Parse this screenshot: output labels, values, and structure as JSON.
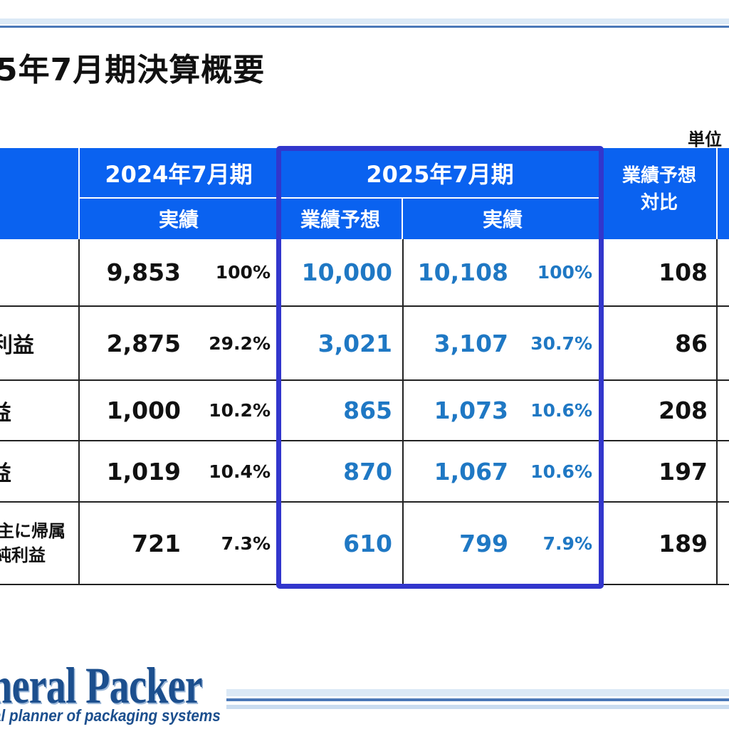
{
  "title": "5年7月期決算概要",
  "unit_label": "単位",
  "header": {
    "fy2024": "2024年7月期",
    "fy2024_actual": "実績",
    "fy2025": "2025年7月期",
    "fy2025_forecast": "業績予想",
    "fy2025_actual": "実績",
    "vs_forecast_line1": "業績予想",
    "vs_forecast_line2": "対比"
  },
  "rows": [
    {
      "label": "",
      "label2": "",
      "fy2024": "9,853",
      "fy2024_pct": "100%",
      "forecast": "10,000",
      "actual": "10,108",
      "actual_pct": "100%",
      "vs": "108"
    },
    {
      "label": "利益",
      "label2": "",
      "fy2024": "2,875",
      "fy2024_pct": "29.2%",
      "forecast": "3,021",
      "actual": "3,107",
      "actual_pct": "30.7%",
      "vs": "86"
    },
    {
      "label": "益",
      "label2": "",
      "fy2024": "1,000",
      "fy2024_pct": "10.2%",
      "forecast": "865",
      "actual": "1,073",
      "actual_pct": "10.6%",
      "vs": "208"
    },
    {
      "label": "益",
      "label2": "",
      "fy2024": "1,019",
      "fy2024_pct": "10.4%",
      "forecast": "870",
      "actual": "1,067",
      "actual_pct": "10.6%",
      "vs": "197"
    },
    {
      "label": "主に帰属",
      "label2": "純利益",
      "fy2024": "721",
      "fy2024_pct": "7.3%",
      "forecast": "610",
      "actual": "799",
      "actual_pct": "7.9%",
      "vs": "189"
    }
  ],
  "footer": {
    "logo": "neral Packer",
    "tagline": "al planner of packaging systems"
  },
  "colors": {
    "header_blue": "#0a62f0",
    "highlight_border": "#3236cc",
    "value_blue": "#1f78c4",
    "brand": "#1c4f8e"
  }
}
